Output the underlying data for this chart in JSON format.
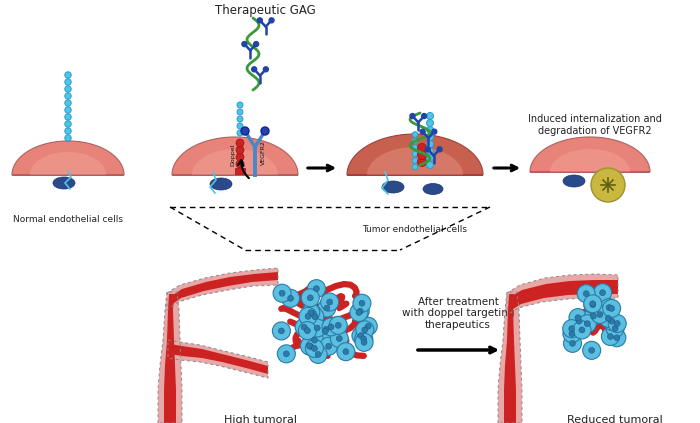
{
  "bg_color": "#ffffff",
  "cell_fill": "#e8837a",
  "cell_fill_dark": "#c86050",
  "cell_highlight": "#f5b0a0",
  "nucleus_color": "#2a4a8a",
  "bead_color": "#4fc3e8",
  "bead_edge": "#2a9dc9",
  "red_color": "#cc2222",
  "red_dark": "#991111",
  "green_color": "#3a9a3a",
  "antibody_color": "#2244aa",
  "vegfr_color": "#4488cc",
  "vessel_outer": "#e8a8a8",
  "vessel_inner": "#cc2222",
  "vessel_edge": "#c08080",
  "cancer_fill": "#5bbfdf",
  "cancer_edge": "#2a7aaa",
  "cancer_nucleus": "#2a7aaa",
  "vesicle_fill": "#c8b840",
  "vesicle_edge": "#a09030",
  "text_color": "#222222",
  "label_normal": "Normal endothelial cells",
  "label_tumor": "Tumor endothelial cells",
  "label_gag": "Therapeutic GAG",
  "label_internalization": "Induced internalization and\ndegradation of VEGFR2",
  "label_high": "High tumoral\nangiogenesis",
  "label_reduced": "Reduced tumoral\nangiogenesis",
  "label_after": "After treatment\nwith doppel targeting\ntherapeutics",
  "label_doppel": "Doppel",
  "label_vegfr2": "VEGFR2"
}
